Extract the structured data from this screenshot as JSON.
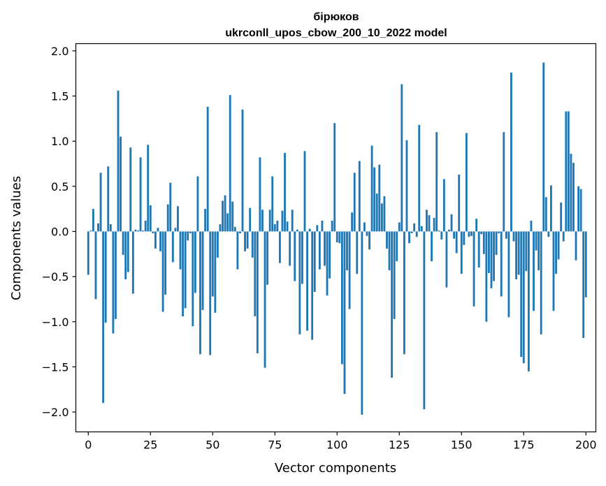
{
  "chart_data": {
    "type": "bar",
    "title_line1": "бірюков",
    "title_line2": "ukrconll_upos_cbow_200_10_2022 model",
    "xlabel": "Vector components",
    "ylabel": "Components values",
    "xlim": [
      -5,
      204
    ],
    "ylim": [
      -2.22,
      2.08
    ],
    "xticks": [
      0,
      25,
      50,
      75,
      100,
      125,
      150,
      175,
      200
    ],
    "yticks": [
      -2.0,
      -1.5,
      -1.0,
      -0.5,
      0.0,
      0.5,
      1.0,
      1.5,
      2.0
    ],
    "ytick_labels": [
      "−2.0",
      "−1.5",
      "−1.0",
      "−0.5",
      "0.0",
      "0.5",
      "1.0",
      "1.5",
      "2.0"
    ],
    "bar_color": "#1f77b4",
    "grid": false,
    "values": [
      -0.48,
      0.01,
      0.25,
      -0.75,
      0.09,
      0.65,
      -1.9,
      -1.01,
      0.72,
      0.08,
      -1.13,
      -0.97,
      1.56,
      1.05,
      -0.26,
      -0.53,
      -0.45,
      0.93,
      -0.69,
      0.02,
      0.01,
      0.82,
      0.01,
      0.12,
      0.96,
      0.29,
      -0.02,
      -0.19,
      0.04,
      -0.22,
      -0.89,
      -0.7,
      0.3,
      0.54,
      -0.34,
      0.04,
      0.28,
      -0.42,
      -0.94,
      -0.85,
      -0.1,
      -0.02,
      -1.05,
      -0.68,
      0.61,
      -1.36,
      -0.87,
      0.25,
      1.38,
      -1.37,
      -0.72,
      -0.9,
      -0.29,
      0.08,
      0.34,
      0.4,
      0.2,
      1.51,
      0.33,
      0.05,
      -0.42,
      -0.02,
      1.35,
      -0.22,
      -0.19,
      0.26,
      -0.29,
      -0.94,
      -1.35,
      0.82,
      0.24,
      -1.51,
      -0.59,
      0.24,
      0.61,
      0.08,
      0.12,
      -0.35,
      0.23,
      0.87,
      0.11,
      -0.38,
      0.24,
      -0.55,
      0.02,
      -1.14,
      -0.58,
      0.89,
      -1.1,
      0.03,
      -1.2,
      -0.67,
      0.07,
      -0.42,
      0.12,
      -0.38,
      -0.71,
      -0.52,
      0.12,
      1.2,
      -0.12,
      -0.13,
      -1.47,
      -1.8,
      -0.43,
      -0.86,
      0.21,
      0.65,
      -0.47,
      0.78,
      -2.03,
      0.1,
      -0.05,
      -0.2,
      0.95,
      0.71,
      0.42,
      0.74,
      0.31,
      0.39,
      -0.19,
      -0.43,
      -1.62,
      -0.97,
      -0.33,
      0.1,
      1.63,
      -1.36,
      1.01,
      -0.13,
      -0.02,
      0.09,
      -0.06,
      1.18,
      0.06,
      -1.97,
      0.24,
      0.18,
      -0.33,
      0.15,
      1.1,
      0.01,
      -0.09,
      0.58,
      -0.62,
      0.02,
      0.19,
      -0.08,
      -0.24,
      0.63,
      -0.47,
      -0.15,
      1.09,
      -0.06,
      -0.05,
      -0.83,
      0.14,
      -0.4,
      -0.03,
      -0.25,
      -1.0,
      -0.46,
      -0.63,
      -0.55,
      -0.26,
      -0.02,
      -0.72,
      1.1,
      -0.08,
      -0.95,
      1.76,
      -0.11,
      -0.53,
      -0.48,
      -1.39,
      -1.46,
      -0.44,
      -1.55,
      0.12,
      -0.88,
      -0.21,
      -0.43,
      -1.14,
      1.87,
      0.38,
      -0.06,
      0.51,
      -0.88,
      -0.47,
      -0.31,
      0.32,
      -0.11,
      1.33,
      1.33,
      0.86,
      0.76,
      -0.32,
      0.5,
      0.47,
      -1.18,
      -0.73
    ]
  }
}
